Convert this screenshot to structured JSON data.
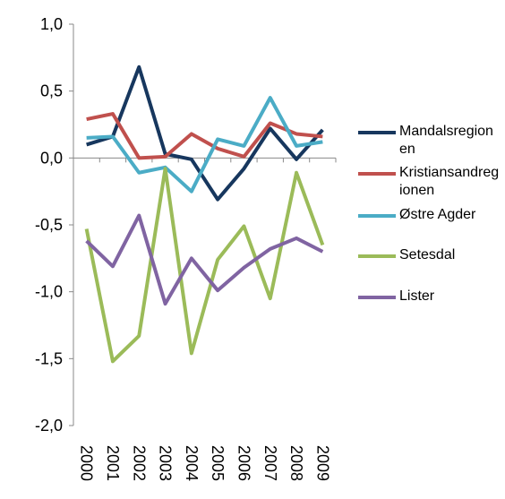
{
  "chart_data": {
    "type": "line",
    "categories": [
      "2000",
      "2001",
      "2002",
      "2003",
      "2004",
      "2005",
      "2006",
      "2007",
      "2008",
      "2009"
    ],
    "series": [
      {
        "name": "Mandalsregionen",
        "color": "#17375e",
        "values": [
          0.1,
          0.16,
          0.68,
          0.03,
          -0.01,
          -0.31,
          -0.08,
          0.22,
          -0.01,
          0.21
        ]
      },
      {
        "name": "Kristiansandregionen",
        "color": "#c0504d",
        "values": [
          0.29,
          0.33,
          0.0,
          0.01,
          0.18,
          0.07,
          0.01,
          0.26,
          0.18,
          0.16
        ]
      },
      {
        "name": "Østre Agder",
        "color": "#4bacc6",
        "values": [
          0.15,
          0.16,
          -0.11,
          -0.07,
          -0.25,
          0.14,
          0.09,
          0.45,
          0.09,
          0.12
        ]
      },
      {
        "name": "Setesdal",
        "color": "#9bbb59",
        "values": [
          -0.53,
          -1.52,
          -1.33,
          -0.08,
          -1.46,
          -0.76,
          -0.51,
          -1.05,
          -0.11,
          -0.65
        ]
      },
      {
        "name": "Lister",
        "color": "#8064a2",
        "values": [
          -0.62,
          -0.81,
          -0.43,
          -1.09,
          -0.75,
          -0.99,
          -0.82,
          -0.68,
          -0.6,
          -0.7
        ]
      }
    ],
    "ylim": [
      -2,
      1
    ],
    "yticks": [
      {
        "value": -2,
        "label": "-2,0"
      },
      {
        "value": -1.5,
        "label": "-1,5"
      },
      {
        "value": -1,
        "label": "-1,0"
      },
      {
        "value": -0.5,
        "label": "-0,5"
      },
      {
        "value": 0,
        "label": "0,0"
      },
      {
        "value": 0.5,
        "label": "0,5"
      },
      {
        "value": 1,
        "label": "1,0"
      }
    ],
    "legend": "right"
  }
}
